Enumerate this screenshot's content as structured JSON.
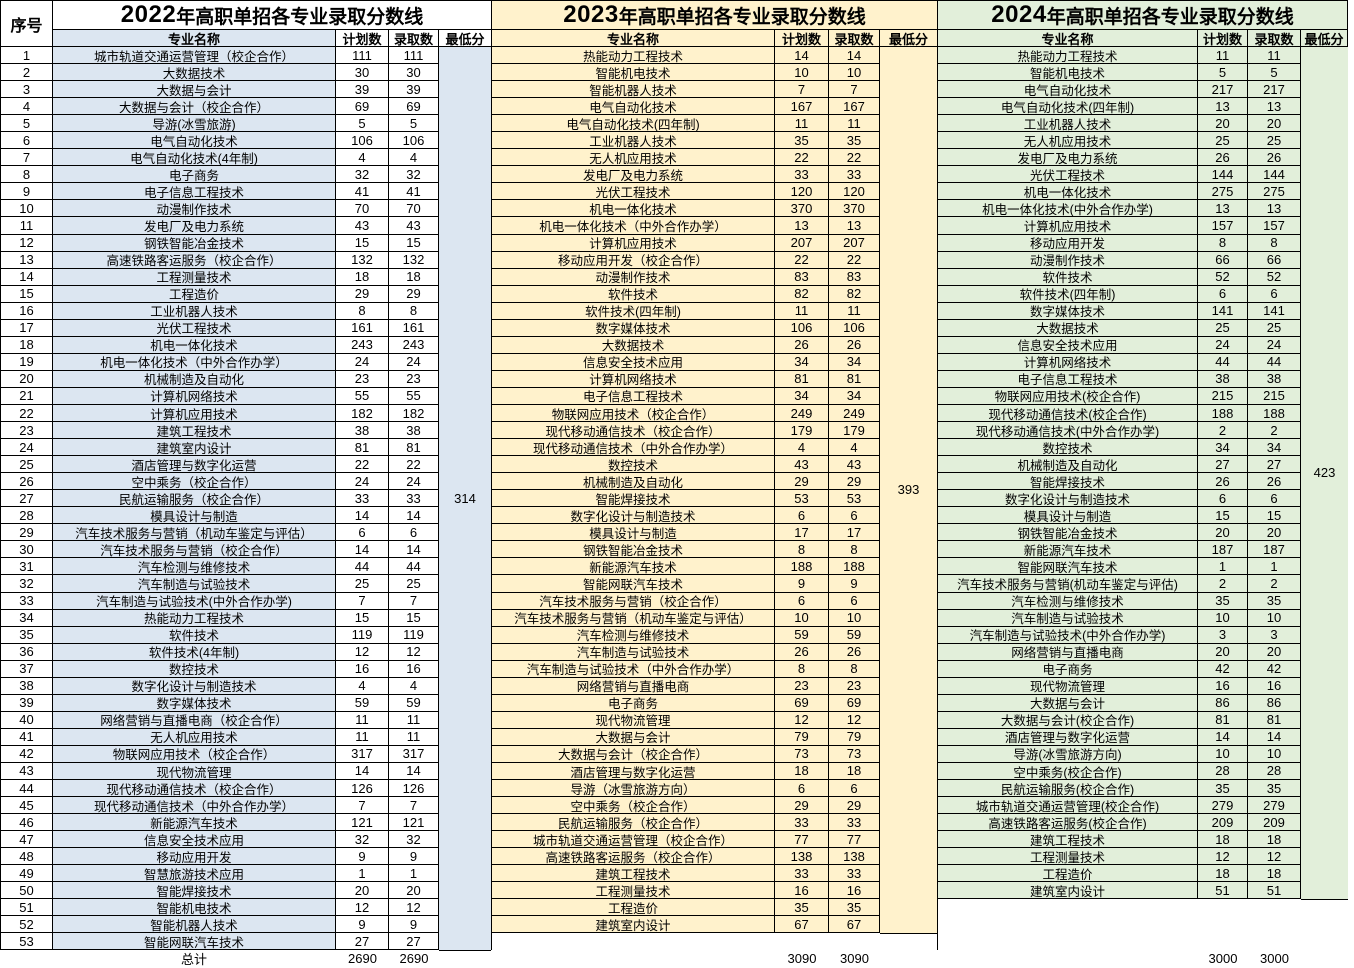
{
  "page": {
    "serial_header": "序号",
    "total_label": "总计"
  },
  "serials": [
    "1",
    "2",
    "3",
    "4",
    "5",
    "6",
    "7",
    "8",
    "9",
    "10",
    "11",
    "12",
    "13",
    "14",
    "15",
    "16",
    "17",
    "18",
    "19",
    "20",
    "21",
    "22",
    "23",
    "24",
    "25",
    "26",
    "27",
    "28",
    "29",
    "30",
    "31",
    "32",
    "33",
    "34",
    "35",
    "36",
    "37",
    "38",
    "39",
    "40",
    "41",
    "42",
    "43",
    "44",
    "45",
    "46",
    "47",
    "48",
    "49",
    "50",
    "51",
    "52",
    "53"
  ],
  "sections": [
    {
      "title_year": "2022",
      "title_rest": "年高职单招各专业录取分数线",
      "col_name": "专业名称",
      "col_plan": "计划数",
      "col_admit": "录取数",
      "col_min": "最低分",
      "min_score": "314",
      "total_plan": "2690",
      "total_admit": "2690",
      "theme": {
        "head_bg": "#ffffff",
        "name_bg": "#dce6f1",
        "num_bg": "#ffffff",
        "min_bg": "#dce6f1"
      },
      "rows": [
        [
          "城市轨道交通运营管理（校企合作）",
          "111",
          "111"
        ],
        [
          "大数据技术",
          "30",
          "30"
        ],
        [
          "大数据与会计",
          "39",
          "39"
        ],
        [
          "大数据与会计（校企合作）",
          "69",
          "69"
        ],
        [
          "导游(冰雪旅游)",
          "5",
          "5"
        ],
        [
          "电气自动化技术",
          "106",
          "106"
        ],
        [
          "电气自动化技术(4年制)",
          "4",
          "4"
        ],
        [
          "电子商务",
          "32",
          "32"
        ],
        [
          "电子信息工程技术",
          "41",
          "41"
        ],
        [
          "动漫制作技术",
          "70",
          "70"
        ],
        [
          "发电厂及电力系统",
          "43",
          "43"
        ],
        [
          "钢铁智能冶金技术",
          "15",
          "15"
        ],
        [
          "高速铁路客运服务（校企合作）",
          "132",
          "132"
        ],
        [
          "工程测量技术",
          "18",
          "18"
        ],
        [
          "工程造价",
          "29",
          "29"
        ],
        [
          "工业机器人技术",
          "8",
          "8"
        ],
        [
          "光伏工程技术",
          "161",
          "161"
        ],
        [
          "机电一体化技术",
          "243",
          "243"
        ],
        [
          "机电一体化技术（中外合作办学）",
          "24",
          "24"
        ],
        [
          "机械制造及自动化",
          "23",
          "23"
        ],
        [
          "计算机网络技术",
          "55",
          "55"
        ],
        [
          "计算机应用技术",
          "182",
          "182"
        ],
        [
          "建筑工程技术",
          "38",
          "38"
        ],
        [
          "建筑室内设计",
          "81",
          "81"
        ],
        [
          "酒店管理与数字化运营",
          "22",
          "22"
        ],
        [
          "空中乘务（校企合作）",
          "24",
          "24"
        ],
        [
          "民航运输服务（校企合作）",
          "33",
          "33"
        ],
        [
          "模具设计与制造",
          "14",
          "14"
        ],
        [
          "汽车技术服务与营销（机动车鉴定与评估）",
          "6",
          "6"
        ],
        [
          "汽车技术服务与营销（校企合作）",
          "14",
          "14"
        ],
        [
          "汽车检测与维修技术",
          "44",
          "44"
        ],
        [
          "汽车制造与试验技术",
          "25",
          "25"
        ],
        [
          "汽车制造与试验技术(中外合作办学)",
          "7",
          "7"
        ],
        [
          "热能动力工程技术",
          "15",
          "15"
        ],
        [
          "软件技术",
          "119",
          "119"
        ],
        [
          "软件技术(4年制)",
          "12",
          "12"
        ],
        [
          "数控技术",
          "16",
          "16"
        ],
        [
          "数字化设计与制造技术",
          "4",
          "4"
        ],
        [
          "数字媒体技术",
          "59",
          "59"
        ],
        [
          "网络营销与直播电商（校企合作）",
          "11",
          "11"
        ],
        [
          "无人机应用技术",
          "11",
          "11"
        ],
        [
          "物联网应用技术（校企合作）",
          "317",
          "317"
        ],
        [
          "现代物流管理",
          "14",
          "14"
        ],
        [
          "现代移动通信技术（校企合作）",
          "126",
          "126"
        ],
        [
          "现代移动通信技术（中外合作办学）",
          "7",
          "7"
        ],
        [
          "新能源汽车技术",
          "121",
          "121"
        ],
        [
          "信息安全技术应用",
          "32",
          "32"
        ],
        [
          "移动应用开发",
          "9",
          "9"
        ],
        [
          "智慧旅游技术应用",
          "1",
          "1"
        ],
        [
          "智能焊接技术",
          "20",
          "20"
        ],
        [
          "智能机电技术",
          "12",
          "12"
        ],
        [
          "智能机器人技术",
          "9",
          "9"
        ],
        [
          "智能网联汽车技术",
          "27",
          "27"
        ]
      ]
    },
    {
      "title_year": "2023",
      "title_rest": "年高职单招各专业录取分数线",
      "col_name": "专业名称",
      "col_plan": "计划数",
      "col_admit": "录取数",
      "col_min": "最低分",
      "min_score": "393",
      "total_plan": "3090",
      "total_admit": "3090",
      "theme": {
        "head_bg": "#fff2cc",
        "name_bg": "#fff2cc",
        "num_bg": "#fff2cc",
        "min_bg": "#fff2cc"
      },
      "rows": [
        [
          "热能动力工程技术",
          "14",
          "14"
        ],
        [
          "智能机电技术",
          "10",
          "10"
        ],
        [
          "智能机器人技术",
          "7",
          "7"
        ],
        [
          "电气自动化技术",
          "167",
          "167"
        ],
        [
          "电气自动化技术(四年制)",
          "11",
          "11"
        ],
        [
          "工业机器人技术",
          "35",
          "35"
        ],
        [
          "无人机应用技术",
          "22",
          "22"
        ],
        [
          "发电厂及电力系统",
          "33",
          "33"
        ],
        [
          "光伏工程技术",
          "120",
          "120"
        ],
        [
          "机电一体化技术",
          "370",
          "370"
        ],
        [
          "机电一体化技术（中外合作办学）",
          "13",
          "13"
        ],
        [
          "计算机应用技术",
          "207",
          "207"
        ],
        [
          "移动应用开发（校企合作）",
          "22",
          "22"
        ],
        [
          "动漫制作技术",
          "83",
          "83"
        ],
        [
          "软件技术",
          "82",
          "82"
        ],
        [
          "软件技术(四年制)",
          "11",
          "11"
        ],
        [
          "数字媒体技术",
          "106",
          "106"
        ],
        [
          "大数据技术",
          "26",
          "26"
        ],
        [
          "信息安全技术应用",
          "34",
          "34"
        ],
        [
          "计算机网络技术",
          "81",
          "81"
        ],
        [
          "电子信息工程技术",
          "34",
          "34"
        ],
        [
          "物联网应用技术（校企合作）",
          "249",
          "249"
        ],
        [
          "现代移动通信技术（校企合作）",
          "179",
          "179"
        ],
        [
          "现代移动通信技术（中外合作办学）",
          "4",
          "4"
        ],
        [
          "数控技术",
          "43",
          "43"
        ],
        [
          "机械制造及自动化",
          "29",
          "29"
        ],
        [
          "智能焊接技术",
          "53",
          "53"
        ],
        [
          "数字化设计与制造技术",
          "6",
          "6"
        ],
        [
          "模具设计与制造",
          "17",
          "17"
        ],
        [
          "钢铁智能冶金技术",
          "8",
          "8"
        ],
        [
          "新能源汽车技术",
          "188",
          "188"
        ],
        [
          "智能网联汽车技术",
          "9",
          "9"
        ],
        [
          "汽车技术服务与营销（校企合作）",
          "6",
          "6"
        ],
        [
          "汽车技术服务与营销（机动车鉴定与评估）",
          "10",
          "10"
        ],
        [
          "汽车检测与维修技术",
          "59",
          "59"
        ],
        [
          "汽车制造与试验技术",
          "26",
          "26"
        ],
        [
          "汽车制造与试验技术（中外合作办学）",
          "8",
          "8"
        ],
        [
          "网络营销与直播电商",
          "23",
          "23"
        ],
        [
          "电子商务",
          "69",
          "69"
        ],
        [
          "现代物流管理",
          "12",
          "12"
        ],
        [
          "大数据与会计",
          "79",
          "79"
        ],
        [
          "大数据与会计（校企合作）",
          "73",
          "73"
        ],
        [
          "酒店管理与数字化运营",
          "18",
          "18"
        ],
        [
          "导游（冰雪旅游方向）",
          "6",
          "6"
        ],
        [
          "空中乘务（校企合作）",
          "29",
          "29"
        ],
        [
          "民航运输服务（校企合作）",
          "33",
          "33"
        ],
        [
          "城市轨道交通运营管理（校企合作）",
          "77",
          "77"
        ],
        [
          "高速铁路客运服务（校企合作）",
          "138",
          "138"
        ],
        [
          "建筑工程技术",
          "33",
          "33"
        ],
        [
          "工程测量技术",
          "16",
          "16"
        ],
        [
          "工程造价",
          "35",
          "35"
        ],
        [
          "建筑室内设计",
          "67",
          "67"
        ]
      ]
    },
    {
      "title_year": "2024",
      "title_rest": "年高职单招各专业录取分数线",
      "col_name": "专业名称",
      "col_plan": "计划数",
      "col_admit": "录取数",
      "col_min": "最低分",
      "min_score": "423",
      "total_plan": "3000",
      "total_admit": "3000",
      "theme": {
        "head_bg": "#e2efda",
        "name_bg": "#e2efda",
        "num_bg": "#e2efda",
        "min_bg": "#e2efda"
      },
      "rows": [
        [
          "热能动力工程技术",
          "11",
          "11"
        ],
        [
          "智能机电技术",
          "5",
          "5"
        ],
        [
          "电气自动化技术",
          "217",
          "217"
        ],
        [
          "电气自动化技术(四年制)",
          "13",
          "13"
        ],
        [
          "工业机器人技术",
          "20",
          "20"
        ],
        [
          "无人机应用技术",
          "25",
          "25"
        ],
        [
          "发电厂及电力系统",
          "26",
          "26"
        ],
        [
          "光伏工程技术",
          "144",
          "144"
        ],
        [
          "机电一体化技术",
          "275",
          "275"
        ],
        [
          "机电一体化技术(中外合作办学)",
          "13",
          "13"
        ],
        [
          "计算机应用技术",
          "157",
          "157"
        ],
        [
          "移动应用开发",
          "8",
          "8"
        ],
        [
          "动漫制作技术",
          "66",
          "66"
        ],
        [
          "软件技术",
          "52",
          "52"
        ],
        [
          "软件技术(四年制)",
          "6",
          "6"
        ],
        [
          "数字媒体技术",
          "141",
          "141"
        ],
        [
          "大数据技术",
          "25",
          "25"
        ],
        [
          "信息安全技术应用",
          "24",
          "24"
        ],
        [
          "计算机网络技术",
          "44",
          "44"
        ],
        [
          "电子信息工程技术",
          "38",
          "38"
        ],
        [
          "物联网应用技术(校企合作)",
          "215",
          "215"
        ],
        [
          "现代移动通信技术(校企合作)",
          "188",
          "188"
        ],
        [
          "现代移动通信技术(中外合作办学)",
          "2",
          "2"
        ],
        [
          "数控技术",
          "34",
          "34"
        ],
        [
          "机械制造及自动化",
          "27",
          "27"
        ],
        [
          "智能焊接技术",
          "26",
          "26"
        ],
        [
          "数字化设计与制造技术",
          "6",
          "6"
        ],
        [
          "模具设计与制造",
          "15",
          "15"
        ],
        [
          "钢铁智能冶金技术",
          "20",
          "20"
        ],
        [
          "新能源汽车技术",
          "187",
          "187"
        ],
        [
          "智能网联汽车技术",
          "1",
          "1"
        ],
        [
          "汽车技术服务与营销(机动车鉴定与评估)",
          "2",
          "2"
        ],
        [
          "汽车检测与维修技术",
          "35",
          "35"
        ],
        [
          "汽车制造与试验技术",
          "10",
          "10"
        ],
        [
          "汽车制造与试验技术(中外合作办学)",
          "3",
          "3"
        ],
        [
          "网络营销与直播电商",
          "20",
          "20"
        ],
        [
          "电子商务",
          "42",
          "42"
        ],
        [
          "现代物流管理",
          "16",
          "16"
        ],
        [
          "大数据与会计",
          "86",
          "86"
        ],
        [
          "大数据与会计(校企合作)",
          "81",
          "81"
        ],
        [
          "酒店管理与数字化运营",
          "14",
          "14"
        ],
        [
          "导游(冰雪旅游方向)",
          "10",
          "10"
        ],
        [
          "空中乘务(校企合作)",
          "28",
          "28"
        ],
        [
          "民航运输服务(校企合作)",
          "35",
          "35"
        ],
        [
          "城市轨道交通运营管理(校企合作)",
          "279",
          "279"
        ],
        [
          "高速铁路客运服务(校企合作)",
          "209",
          "209"
        ],
        [
          "建筑工程技术",
          "18",
          "18"
        ],
        [
          "工程测量技术",
          "12",
          "12"
        ],
        [
          "工程造价",
          "18",
          "18"
        ],
        [
          "建筑室内设计",
          "51",
          "51"
        ]
      ]
    }
  ]
}
